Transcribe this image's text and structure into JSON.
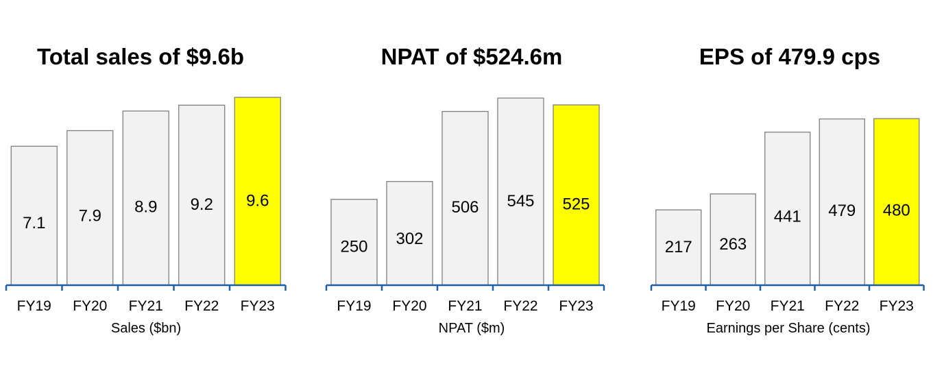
{
  "colors": {
    "bar": "#f2f2f2",
    "highlight": "#ffff00",
    "bar_stroke": "#7f7f7f",
    "axis": "#1f5fa8"
  },
  "chart_data": [
    {
      "type": "bar",
      "title": "Total sales of $9.6b",
      "xlabel": "Sales ($bn)",
      "categories": [
        "FY19",
        "FY20",
        "FY21",
        "FY22",
        "FY23"
      ],
      "values": [
        7.1,
        7.9,
        8.9,
        9.2,
        9.6
      ],
      "labels": [
        "7.1",
        "7.9",
        "8.9",
        "9.2",
        "9.6"
      ],
      "highlight_index": 4,
      "ylim": [
        0,
        9.6
      ]
    },
    {
      "type": "bar",
      "title": "NPAT of $524.6m",
      "xlabel": "NPAT ($m)",
      "categories": [
        "FY19",
        "FY20",
        "FY21",
        "FY22",
        "FY23"
      ],
      "values": [
        250,
        302,
        506,
        545,
        525
      ],
      "labels": [
        "250",
        "302",
        "506",
        "545",
        "525"
      ],
      "highlight_index": 4,
      "ylim": [
        0,
        545
      ]
    },
    {
      "type": "bar",
      "title": "EPS of 479.9 cps",
      "xlabel": "Earnings per Share (cents)",
      "categories": [
        "FY19",
        "FY20",
        "FY21",
        "FY22",
        "FY23"
      ],
      "values": [
        217,
        263,
        441,
        479,
        480
      ],
      "labels": [
        "217",
        "263",
        "441",
        "479",
        "480"
      ],
      "highlight_index": 4,
      "ylim": [
        0,
        480
      ]
    }
  ]
}
